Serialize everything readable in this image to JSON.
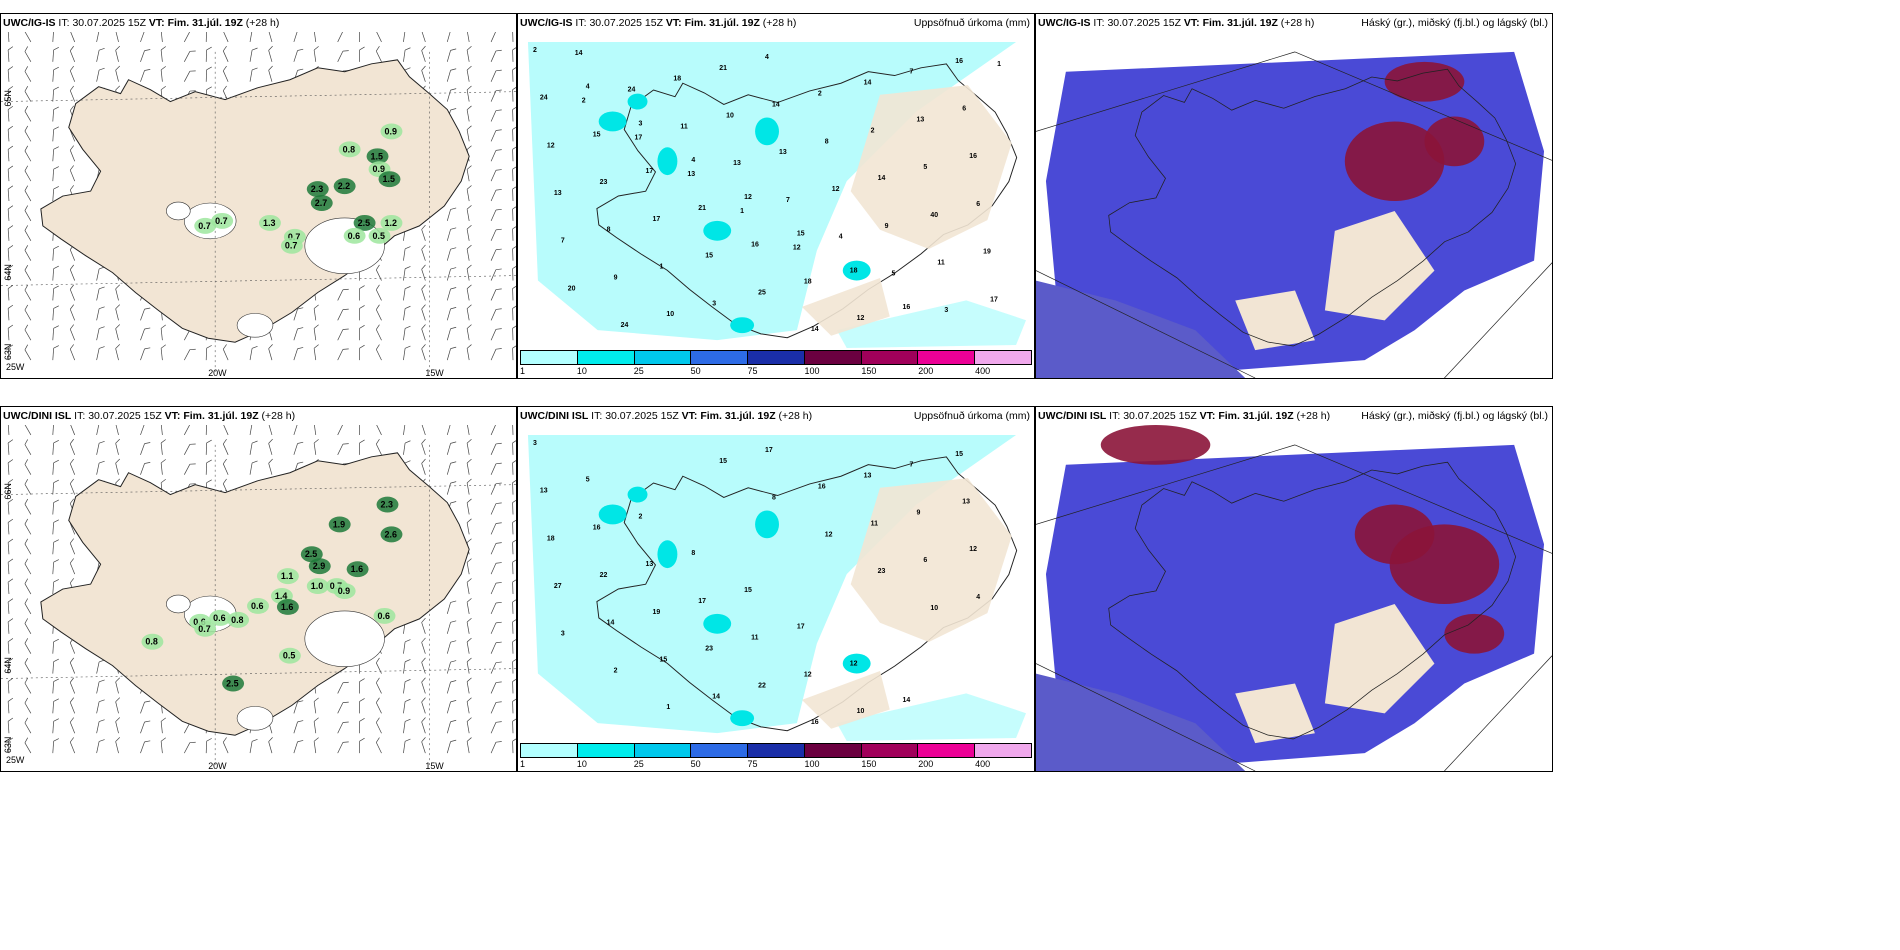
{
  "rows": [
    {
      "model": "UWC/IG-IS",
      "it_label": "IT:",
      "it": "30.07.2025 15Z",
      "vt_label": "VT:",
      "vt": "Fim. 31.júl. 19Z",
      "lead": "(+28 h)",
      "wind_panel": {
        "lat_labels": [
          "65N",
          "64N",
          "63N"
        ],
        "lon_labels": [
          "20W",
          "15W",
          "25W"
        ],
        "values": [
          {
            "v": "0.9"
          },
          {
            "v": "0.8"
          },
          {
            "v": "1.5"
          },
          {
            "v": "0.9"
          },
          {
            "v": "1.5"
          },
          {
            "v": "2.2"
          },
          {
            "v": "2.3"
          },
          {
            "v": "2.7"
          },
          {
            "v": "0.7"
          },
          {
            "v": "0.7"
          },
          {
            "v": "1.3"
          },
          {
            "v": "0.7"
          },
          {
            "v": "0.7"
          },
          {
            "v": "2.5"
          },
          {
            "v": "1.2"
          },
          {
            "v": "0.6"
          },
          {
            "v": "0.5"
          }
        ]
      },
      "precip_panel": {
        "right_title": "Uppsöfnuð úrkoma (mm)",
        "values": [
          "2",
          "4",
          "3",
          "4",
          "12",
          "15",
          "18",
          "16",
          "16",
          "24",
          "15",
          "17",
          "21",
          "16",
          "18",
          "12",
          "7",
          "6",
          "12",
          "23",
          "17",
          "15",
          "25",
          "14",
          "14",
          "13",
          "16",
          "13",
          "8",
          "1",
          "3",
          "4",
          "2",
          "2",
          "5",
          "6",
          "7",
          "9",
          "10",
          "21",
          "14",
          "8",
          "14",
          "40",
          "19",
          "20",
          "24",
          "18",
          "10",
          "13",
          "12",
          "9",
          "11",
          "17",
          "14",
          "24",
          "11",
          "13",
          "7",
          "4",
          "5",
          "3",
          "1",
          "2",
          "17",
          "13",
          "1",
          "12"
        ]
      },
      "cloud_panel": {
        "right_title": "Háský (gr.), miðský (fj.bl.) og lágský (bl.)"
      }
    },
    {
      "model": "UWC/DINI ISL",
      "it_label": "IT:",
      "it": "30.07.2025 15Z",
      "vt_label": "VT:",
      "vt": "Fim. 31.júl. 19Z",
      "lead": "(+28 h)",
      "wind_panel": {
        "lat_labels": [
          "66N",
          "64N",
          "63N"
        ],
        "lon_labels": [
          "20W",
          "15W",
          "25W"
        ],
        "values": [
          {
            "v": "2.3"
          },
          {
            "v": "1.9"
          },
          {
            "v": "2.6"
          },
          {
            "v": "2.5"
          },
          {
            "v": "2.9"
          },
          {
            "v": "1.6"
          },
          {
            "v": "1.1"
          },
          {
            "v": "1.0"
          },
          {
            "v": "0.7"
          },
          {
            "v": "0.9"
          },
          {
            "v": "1.4"
          },
          {
            "v": "1.6"
          },
          {
            "v": "0.6"
          },
          {
            "v": "0.6"
          },
          {
            "v": "0.6"
          },
          {
            "v": "0.8"
          },
          {
            "v": "0.7"
          },
          {
            "v": "0.8"
          },
          {
            "v": "0.6"
          },
          {
            "v": "0.5"
          },
          {
            "v": "2.5"
          }
        ]
      },
      "precip_panel": {
        "right_title": "Uppsöfnuð úrkoma (mm)",
        "values": [
          "3",
          "5",
          "2",
          "8",
          "15",
          "17",
          "12",
          "14",
          "15",
          "13",
          "16",
          "13",
          "17",
          "11",
          "12",
          "10",
          "7",
          "13",
          "18",
          "22",
          "19",
          "23",
          "22",
          "16",
          "13",
          "9",
          "12",
          "27",
          "14",
          "15",
          "14",
          "17",
          "16",
          "11",
          "6",
          "4",
          "3",
          "2",
          "1",
          "15",
          "8",
          "12",
          "23",
          "10"
        ]
      },
      "cloud_panel": {
        "right_title": "Háský (gr.), miðský (fj.bl.) og lágský (bl.)"
      }
    }
  ],
  "colorbar": {
    "ticks": [
      "1",
      "10",
      "25",
      "50",
      "75",
      "100",
      "150",
      "200",
      "400"
    ],
    "colors": [
      "#b2ffff",
      "#00ecec",
      "#00c8ec",
      "#2d6be6",
      "#1a2ea8",
      "#6b0040",
      "#a0005a",
      "#ec0096",
      "#f0a8ec"
    ]
  },
  "colors": {
    "land": "#f2e5d4",
    "sea": "#ffffff",
    "precip_light": "#b8fcfc",
    "precip_mid": "#00e6e6",
    "cloud_low": "#5b5bc9",
    "cloud_mid": "#4a4ad6",
    "cloud_high": "#8b1438"
  }
}
